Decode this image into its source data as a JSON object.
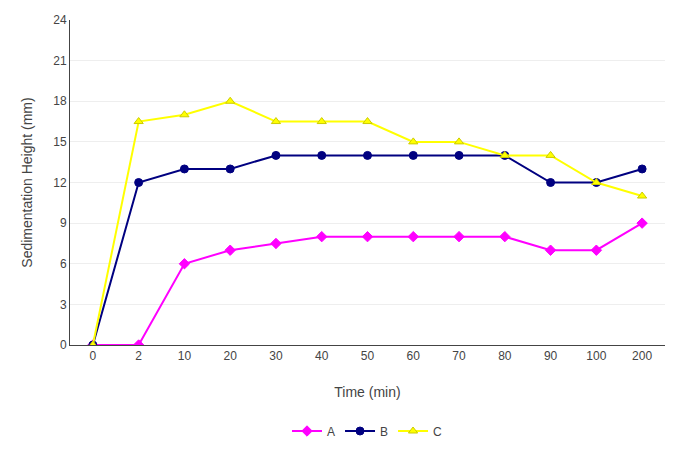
{
  "chart_data": {
    "type": "line",
    "xlabel": "Time (min)",
    "ylabel": "Sedimentation Height (mm)",
    "categories": [
      "0",
      "2",
      "10",
      "20",
      "30",
      "40",
      "50",
      "60",
      "70",
      "80",
      "90",
      "100",
      "200"
    ],
    "series": [
      {
        "name": "A",
        "color": "#ff00ff",
        "marker": "diamond",
        "values": [
          0,
          0,
          6,
          7,
          7.5,
          8,
          8,
          8,
          8,
          8,
          7,
          7,
          9
        ]
      },
      {
        "name": "B",
        "color": "#000080",
        "marker": "circle",
        "values": [
          0,
          12,
          13,
          13,
          14,
          14,
          14,
          14,
          14,
          14,
          12,
          12,
          13
        ]
      },
      {
        "name": "C",
        "color": "#ffff00",
        "marker": "triangle-up",
        "values": [
          0,
          16.5,
          17,
          18,
          16.5,
          16.5,
          16.5,
          15,
          15,
          14,
          14,
          12,
          11
        ]
      }
    ],
    "ylim": [
      0,
      24
    ],
    "yticks": [
      0,
      3,
      6,
      9,
      12,
      15,
      18,
      21,
      24
    ],
    "grid": true,
    "legend": "bottom"
  }
}
